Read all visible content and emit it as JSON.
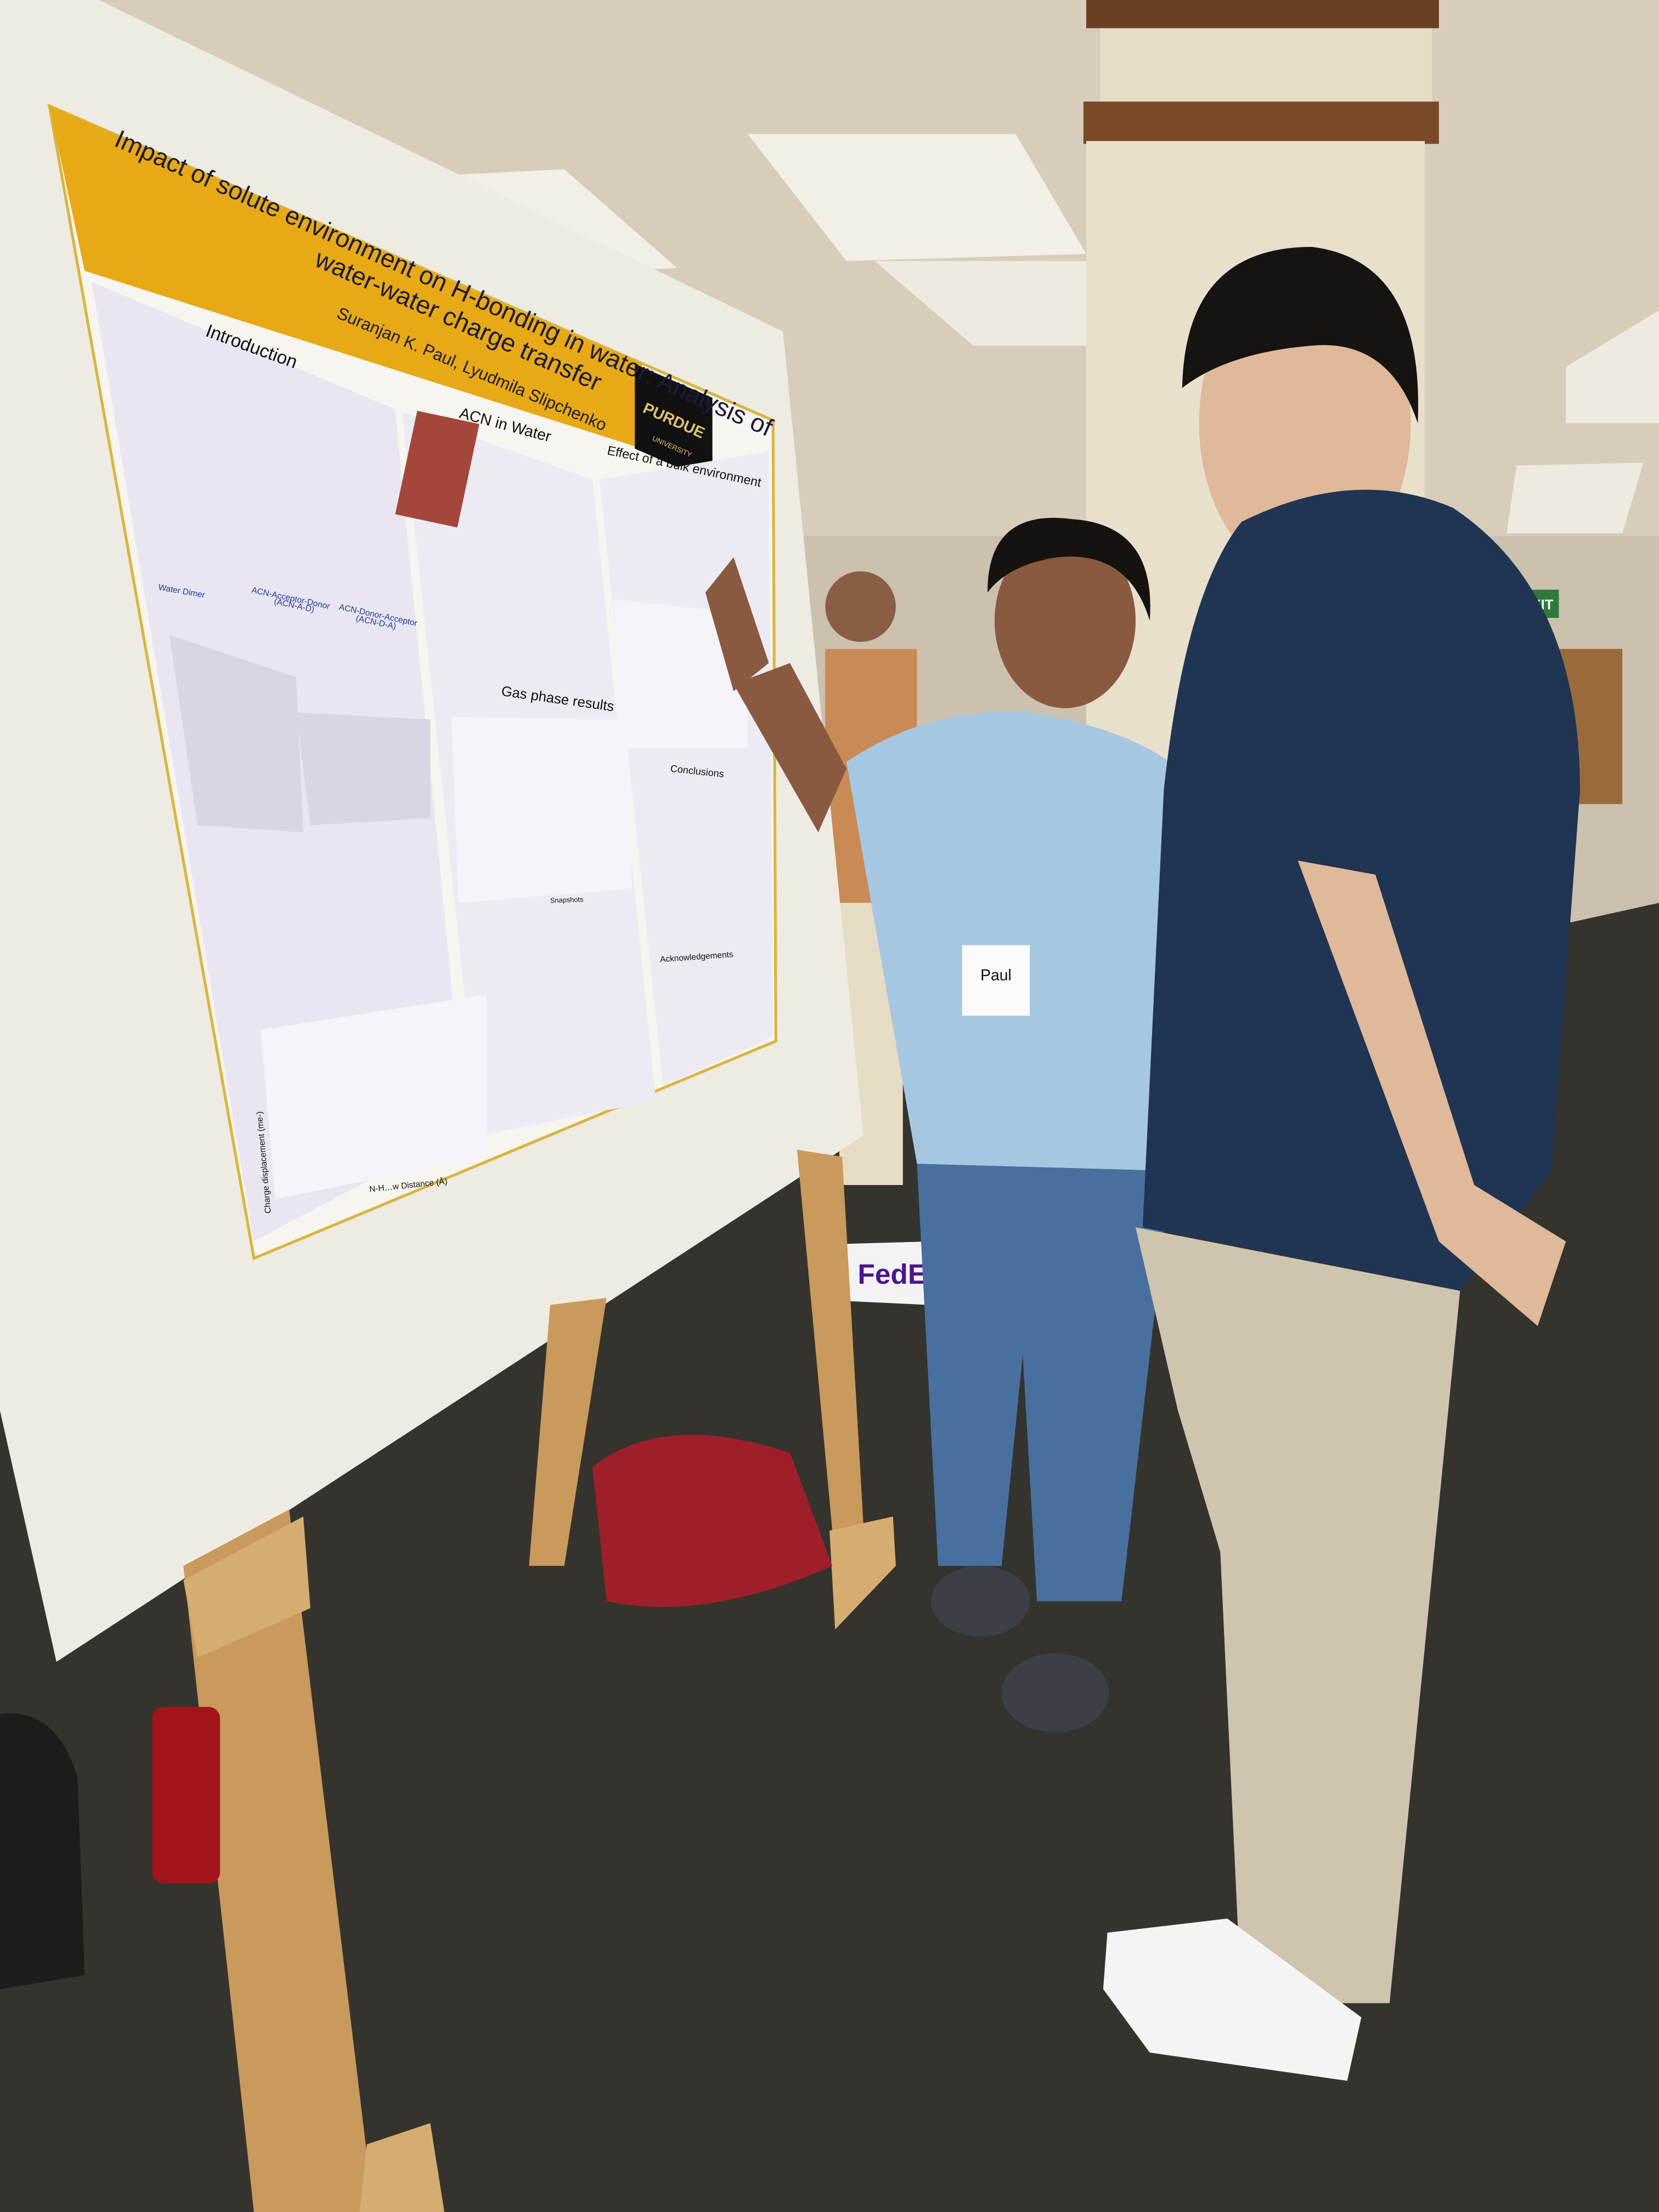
{
  "poster": {
    "title_lines": [
      "Impact of solute environment on H-bonding in water: Analysis of",
      "water-water charge transfer"
    ],
    "authors": "Suranjan K. Paul, Lyudmila Slipchenko",
    "logo": [
      "PURDUE",
      "UNIVERSITY"
    ],
    "sections": [
      "Introduction",
      "ACN in Water",
      "Effect of a bulk environment",
      "Gas phase results",
      "Conclusions",
      "Acknowledgements"
    ],
    "labels": [
      "Water Dimer",
      "ACN-Acceptor-Donor",
      "(ACN-A-D)",
      "ACN-Donor-Acceptor",
      "(ACN-D-A)",
      "N-H…w Distance (Å)",
      "Charge displacement (me-)",
      "Snapshots"
    ]
  },
  "badge": "Paul",
  "sign": "FedEx",
  "exit": "EXIT"
}
